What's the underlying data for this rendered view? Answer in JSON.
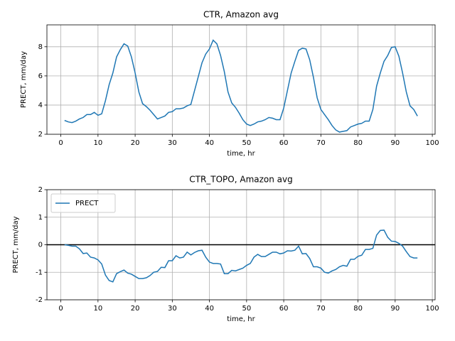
{
  "chart_data": [
    {
      "type": "line",
      "title": "CTR, Amazon avg",
      "xlabel": "time, hr",
      "ylabel": "PRECT, mm/day",
      "x": [
        1,
        2,
        3,
        4,
        5,
        6,
        7,
        8,
        9,
        10,
        11,
        12,
        13,
        14,
        15,
        16,
        17,
        18,
        19,
        20,
        21,
        22,
        23,
        24,
        25,
        26,
        27,
        28,
        29,
        30,
        31,
        32,
        33,
        34,
        35,
        36,
        37,
        38,
        39,
        40,
        41,
        42,
        43,
        44,
        45,
        46,
        47,
        48,
        49,
        50,
        51,
        52,
        53,
        54,
        55,
        56,
        57,
        58,
        59,
        60,
        61,
        62,
        63,
        64,
        65,
        66,
        67,
        68,
        69,
        70,
        71,
        72,
        73,
        74,
        75,
        76,
        77,
        78,
        79,
        80,
        81,
        82,
        83,
        84,
        85,
        86,
        87,
        88,
        89,
        90,
        91,
        92,
        93,
        94,
        95,
        96
      ],
      "values": [
        2.95,
        2.85,
        2.8,
        2.9,
        3.05,
        3.15,
        3.35,
        3.35,
        3.5,
        3.3,
        3.4,
        4.3,
        5.4,
        6.2,
        7.3,
        7.8,
        8.2,
        8.05,
        7.3,
        6.2,
        4.9,
        4.1,
        3.9,
        3.65,
        3.35,
        3.05,
        3.15,
        3.25,
        3.5,
        3.55,
        3.75,
        3.75,
        3.8,
        3.95,
        4.05,
        5.0,
        5.95,
        6.9,
        7.5,
        7.85,
        8.45,
        8.2,
        7.4,
        6.3,
        4.9,
        4.15,
        3.85,
        3.45,
        3.0,
        2.7,
        2.6,
        2.7,
        2.85,
        2.9,
        3.0,
        3.15,
        3.1,
        3.0,
        3.0,
        3.8,
        5.0,
        6.2,
        7.0,
        7.75,
        7.9,
        7.85,
        7.1,
        5.9,
        4.5,
        3.7,
        3.35,
        3.0,
        2.6,
        2.3,
        2.15,
        2.2,
        2.25,
        2.5,
        2.6,
        2.7,
        2.75,
        2.9,
        2.9,
        3.7,
        5.3,
        6.2,
        7.0,
        7.4,
        7.95,
        8.0,
        7.35,
        6.2,
        4.9,
        3.95,
        3.7,
        3.25
      ],
      "color": "#1f77b4",
      "xlim": [
        -3.75,
        100.75
      ],
      "xticks": [
        0,
        10,
        20,
        30,
        40,
        50,
        60,
        70,
        80,
        90,
        100
      ],
      "ylim": [
        2,
        9.5
      ],
      "yticks": [
        2,
        4,
        6,
        8
      ],
      "grid": true
    },
    {
      "type": "line",
      "title": "CTR_TOPO, Amazon avg",
      "xlabel": "time, hr",
      "ylabel": "PRECT, mm/day",
      "x": [
        1,
        2,
        3,
        4,
        5,
        6,
        7,
        8,
        9,
        10,
        11,
        12,
        13,
        14,
        15,
        16,
        17,
        18,
        19,
        20,
        21,
        22,
        23,
        24,
        25,
        26,
        27,
        28,
        29,
        30,
        31,
        32,
        33,
        34,
        35,
        36,
        37,
        38,
        39,
        40,
        41,
        42,
        43,
        44,
        45,
        46,
        47,
        48,
        49,
        50,
        51,
        52,
        53,
        54,
        55,
        56,
        57,
        58,
        59,
        60,
        61,
        62,
        63,
        64,
        65,
        66,
        67,
        68,
        69,
        70,
        71,
        72,
        73,
        74,
        75,
        76,
        77,
        78,
        79,
        80,
        81,
        82,
        83,
        84,
        85,
        86,
        87,
        88,
        89,
        90,
        91,
        92,
        93,
        94,
        95,
        96
      ],
      "series": [
        {
          "name": "PRECT",
          "color": "#1f77b4",
          "values": [
            0,
            -0.02,
            -0.05,
            -0.05,
            -0.15,
            -0.32,
            -0.3,
            -0.45,
            -0.48,
            -0.55,
            -0.7,
            -1.1,
            -1.3,
            -1.35,
            -1.05,
            -0.98,
            -0.92,
            -1.03,
            -1.07,
            -1.15,
            -1.23,
            -1.23,
            -1.2,
            -1.12,
            -1.0,
            -0.97,
            -0.82,
            -0.83,
            -0.58,
            -0.58,
            -0.4,
            -0.48,
            -0.45,
            -0.27,
            -0.37,
            -0.28,
            -0.22,
            -0.2,
            -0.45,
            -0.63,
            -0.68,
            -0.68,
            -0.7,
            -1.05,
            -1.05,
            -0.93,
            -0.95,
            -0.9,
            -0.85,
            -0.75,
            -0.68,
            -0.45,
            -0.35,
            -0.43,
            -0.43,
            -0.35,
            -0.27,
            -0.27,
            -0.33,
            -0.3,
            -0.22,
            -0.23,
            -0.2,
            -0.05,
            -0.33,
            -0.32,
            -0.5,
            -0.8,
            -0.8,
            -0.85,
            -1.0,
            -1.03,
            -0.95,
            -0.9,
            -0.8,
            -0.75,
            -0.78,
            -0.53,
            -0.53,
            -0.42,
            -0.38,
            -0.17,
            -0.17,
            -0.13,
            0.35,
            0.52,
            0.53,
            0.27,
            0.13,
            0.12,
            0.05,
            -0.05,
            -0.25,
            -0.43,
            -0.48,
            -0.48
          ]
        }
      ],
      "hline": 0,
      "legend": "upper left",
      "xlim": [
        -3.75,
        100.75
      ],
      "xticks": [
        0,
        10,
        20,
        30,
        40,
        50,
        60,
        70,
        80,
        90,
        100
      ],
      "ylim": [
        -2,
        2
      ],
      "yticks": [
        -2,
        -1,
        0,
        1,
        2
      ],
      "grid": true
    }
  ]
}
